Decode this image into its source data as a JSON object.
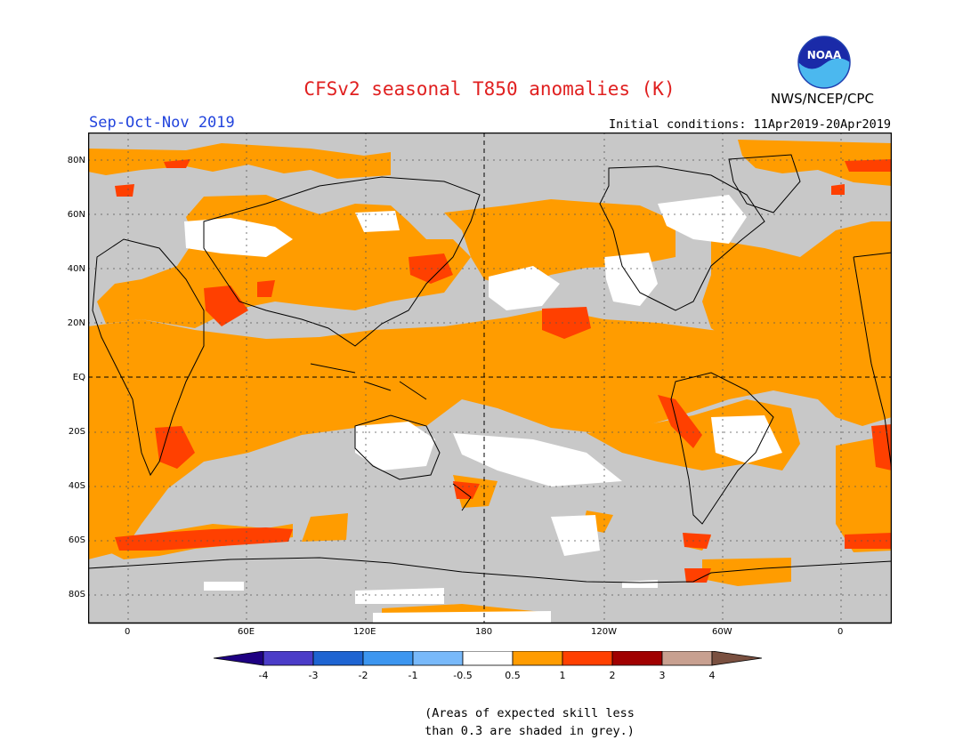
{
  "title": "CFSv2 seasonal T850 anomalies (K)",
  "season": "Sep-Oct-Nov 2019",
  "initial_conditions": "Initial conditions: 11Apr2019-20Apr2019",
  "agency": "NWS/NCEP/CPC",
  "logo": {
    "icon": "noaa-logo-icon",
    "text": "NOAA"
  },
  "map": {
    "lat_labels": [
      "80N",
      "60N",
      "40N",
      "20N",
      "EQ",
      "20S",
      "40S",
      "60S",
      "80S"
    ],
    "lon_labels": [
      "0",
      "60E",
      "120E",
      "180",
      "120W",
      "60W",
      "0"
    ],
    "colors": {
      "skill_grey": "#c8c8c8",
      "neutral": "#ffffff",
      "warm_0_5_1": "#ff9c00",
      "warm_1_2": "#ff4000",
      "warm_2_3": "#a00000"
    }
  },
  "colorbar": {
    "labels": [
      "-4",
      "-3",
      "-2",
      "-1",
      "-0.5",
      "0.5",
      "1",
      "2",
      "3",
      "4"
    ],
    "colors": [
      "#1e0082",
      "#4b3cc8",
      "#1e64d2",
      "#3c96f0",
      "#78b9fa",
      "#ffffff",
      "#ff9c00",
      "#ff4000",
      "#a00000",
      "#c8a090",
      "#7a5040"
    ]
  },
  "note": {
    "line1": "(Areas of expected skill less",
    "line2": "than 0.3 are shaded in grey.)"
  }
}
